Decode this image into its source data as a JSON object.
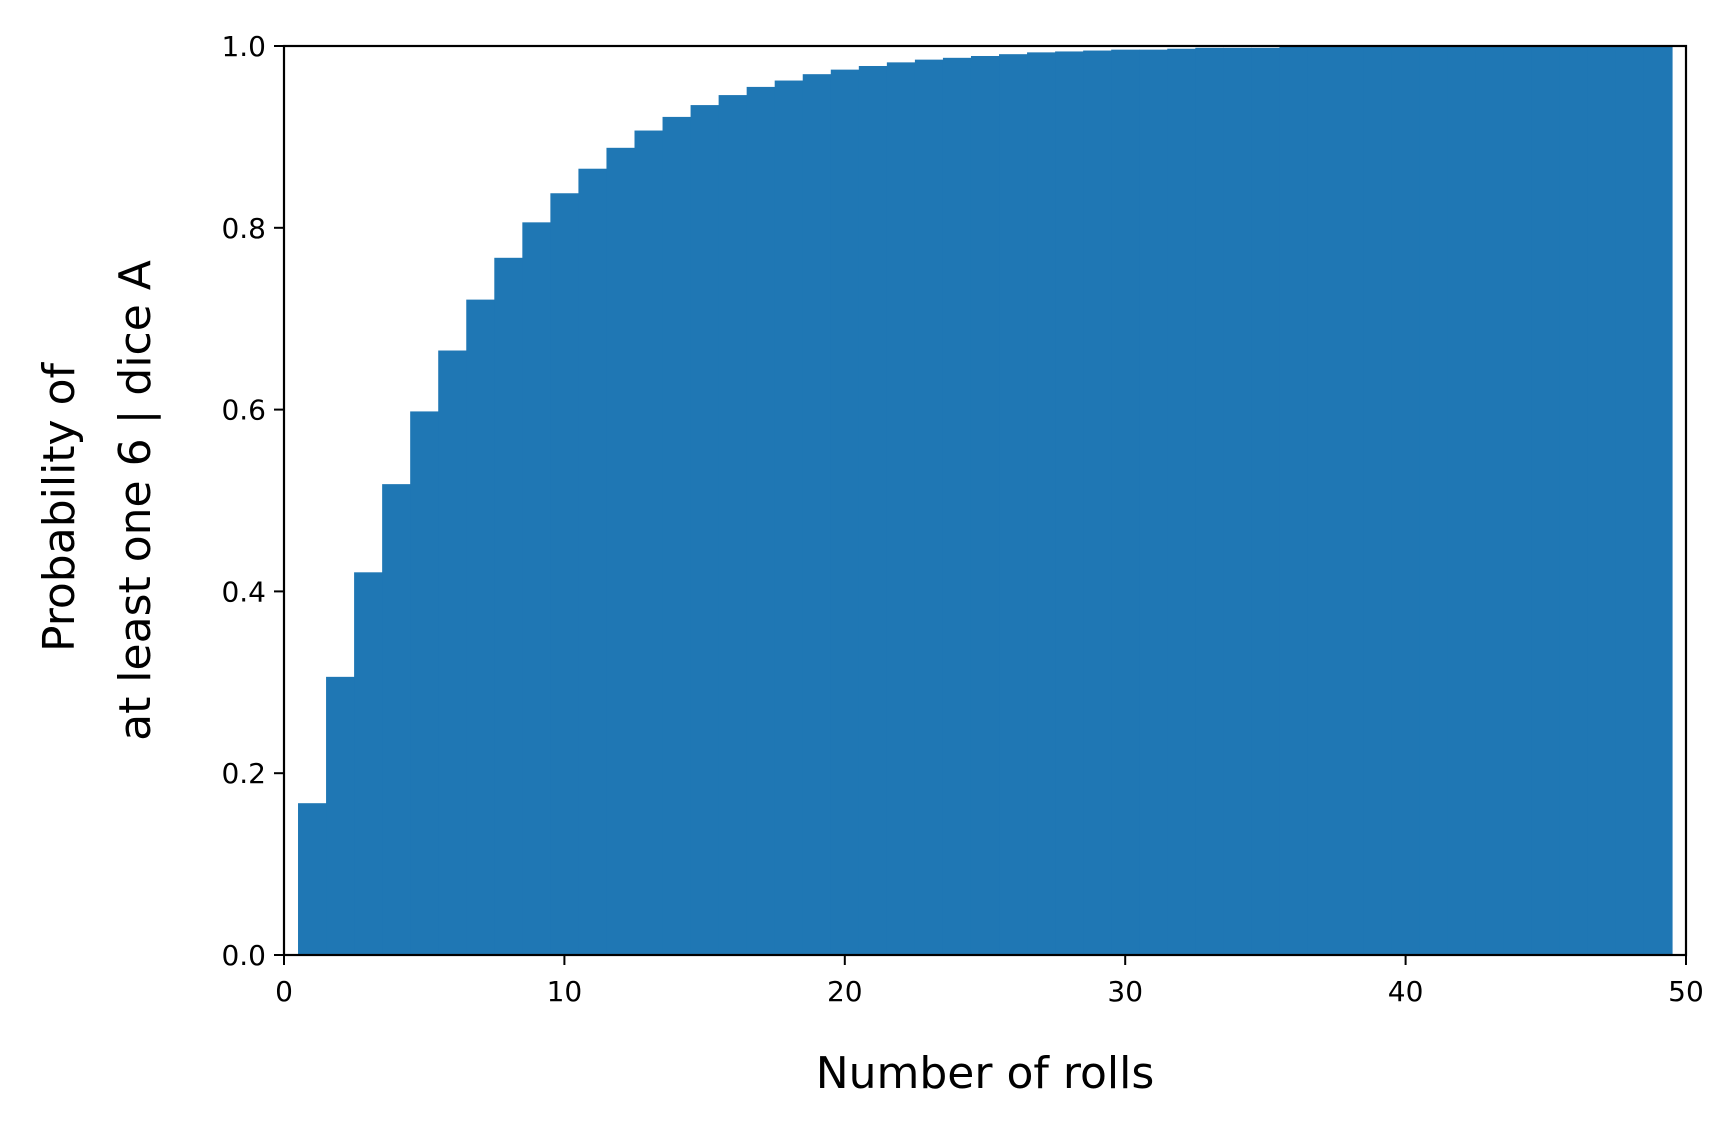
{
  "chart_data": {
    "type": "bar",
    "title": "",
    "xlabel": "Number of rolls",
    "ylabel_lines": [
      "Probability of",
      "at least one  6 | dice A"
    ],
    "xlim": [
      0,
      50
    ],
    "ylim": [
      0.0,
      1.0
    ],
    "xticks": [
      "0",
      "10",
      "20",
      "30",
      "40",
      "50"
    ],
    "yticks": [
      "0.0",
      "0.2",
      "0.4",
      "0.6",
      "0.8",
      "1.0"
    ],
    "grid": false,
    "legend": "none",
    "bar_color": "#1f77b4",
    "bar_width": 1,
    "x": [
      1,
      2,
      3,
      4,
      5,
      6,
      7,
      8,
      9,
      10,
      11,
      12,
      13,
      14,
      15,
      16,
      17,
      18,
      19,
      20,
      21,
      22,
      23,
      24,
      25,
      26,
      27,
      28,
      29,
      30,
      31,
      32,
      33,
      34,
      35,
      36,
      37,
      38,
      39,
      40,
      41,
      42,
      43,
      44,
      45,
      46,
      47,
      48,
      49
    ],
    "values": [
      0.167,
      0.306,
      0.421,
      0.518,
      0.598,
      0.665,
      0.721,
      0.767,
      0.806,
      0.838,
      0.865,
      0.888,
      0.907,
      0.922,
      0.935,
      0.946,
      0.955,
      0.962,
      0.969,
      0.974,
      0.978,
      0.982,
      0.985,
      0.987,
      0.989,
      0.991,
      0.993,
      0.994,
      0.995,
      0.996,
      0.996,
      0.997,
      0.998,
      0.998,
      0.998,
      0.999,
      0.999,
      0.999,
      0.999,
      0.999,
      0.999,
      1.0,
      1.0,
      1.0,
      1.0,
      1.0,
      1.0,
      1.0,
      1.0
    ]
  }
}
